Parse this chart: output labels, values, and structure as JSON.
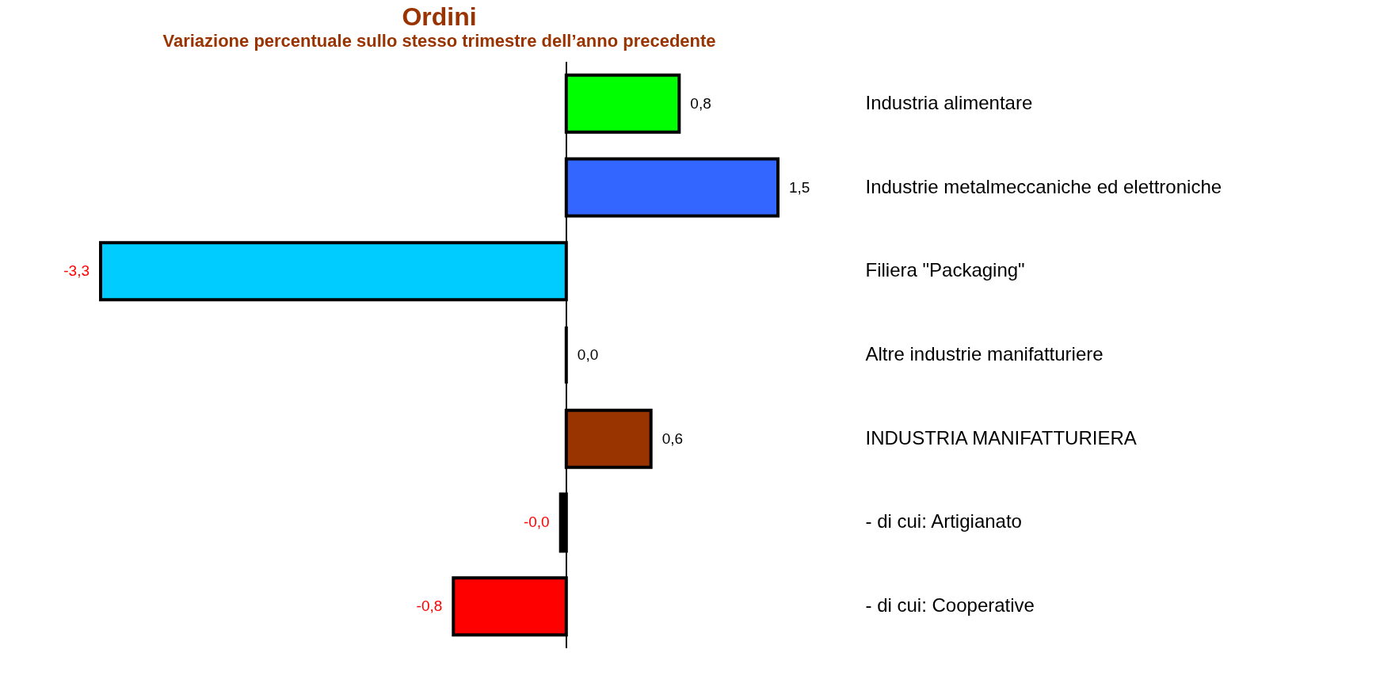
{
  "chart_data": {
    "type": "bar",
    "orientation": "horizontal",
    "title": "Ordini",
    "subtitle": "Variazione percentuale sullo stesso trimestre dell’anno precedente",
    "categories": [
      "Industria alimentare",
      "Industrie metalmeccaniche ed elettroniche",
      "Filiera \"Packaging\"",
      "Altre industrie manifatturiere",
      "INDUSTRIA MANIFATTURIERA",
      " - di cui: Artigianato",
      " - di cui: Cooperative"
    ],
    "values": [
      0.8,
      1.5,
      -3.3,
      0.0,
      0.6,
      -0.04,
      -0.8
    ],
    "value_labels": [
      "0,8",
      "1,5",
      "-3,3",
      "0,0",
      "0,6",
      "-0,0",
      "-0,8"
    ],
    "colors": [
      "#00ff00",
      "#3366ff",
      "#00ccff",
      "#000000",
      "#993300",
      "#000000",
      "#ff0000"
    ],
    "legend": false,
    "grid": false
  }
}
